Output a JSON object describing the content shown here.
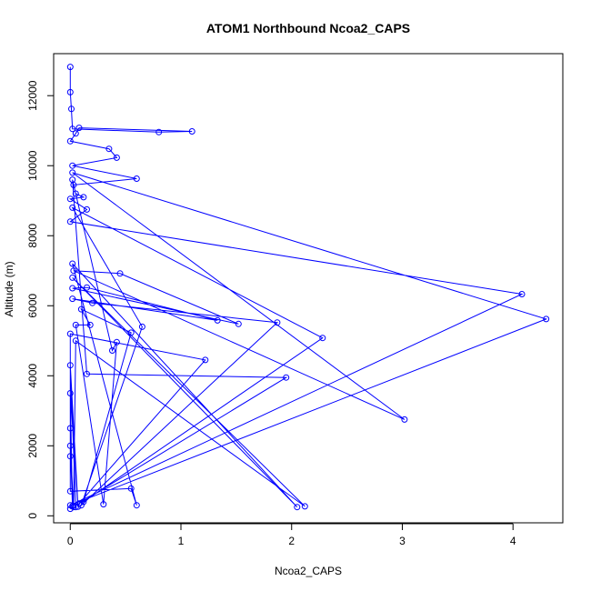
{
  "chart_data": {
    "type": "line",
    "title": "ATOM1 Northbound Ncoa2_CAPS",
    "xlabel": "Ncoa2_CAPS",
    "ylabel": "Altitude (m)",
    "xlim": [
      -0.15,
      4.45
    ],
    "ylim": [
      -200,
      13200
    ],
    "xticks": [
      0,
      1,
      2,
      3,
      4
    ],
    "yticks": [
      0,
      2000,
      4000,
      6000,
      8000,
      10000,
      12000
    ],
    "grid": false,
    "legend": "none",
    "color": "#0000ff",
    "points": [
      {
        "x": 0.0,
        "y": 12820
      },
      {
        "x": 0.0,
        "y": 12100
      },
      {
        "x": 0.01,
        "y": 11620
      },
      {
        "x": 0.02,
        "y": 11050
      },
      {
        "x": 0.8,
        "y": 10960
      },
      {
        "x": 1.1,
        "y": 10980
      },
      {
        "x": 0.08,
        "y": 11080
      },
      {
        "x": 0.05,
        "y": 10920
      },
      {
        "x": 0.0,
        "y": 10700
      },
      {
        "x": 0.35,
        "y": 10480
      },
      {
        "x": 0.42,
        "y": 10230
      },
      {
        "x": 0.02,
        "y": 10000
      },
      {
        "x": 0.6,
        "y": 9630
      },
      {
        "x": 0.03,
        "y": 9450
      },
      {
        "x": 0.05,
        "y": 9200
      },
      {
        "x": 0.12,
        "y": 9100
      },
      {
        "x": 0.0,
        "y": 9050
      },
      {
        "x": 0.15,
        "y": 8750
      },
      {
        "x": 0.0,
        "y": 8400
      },
      {
        "x": 4.08,
        "y": 6330
      },
      {
        "x": 0.0,
        "y": 300
      },
      {
        "x": 4.3,
        "y": 5620
      },
      {
        "x": 0.02,
        "y": 9800
      },
      {
        "x": 3.02,
        "y": 2750
      },
      {
        "x": 0.03,
        "y": 7000
      },
      {
        "x": 0.45,
        "y": 6920
      },
      {
        "x": 1.52,
        "y": 5480
      },
      {
        "x": 0.02,
        "y": 6500
      },
      {
        "x": 0.15,
        "y": 6520
      },
      {
        "x": 1.33,
        "y": 5580
      },
      {
        "x": 0.02,
        "y": 6200
      },
      {
        "x": 0.2,
        "y": 6080
      },
      {
        "x": 1.87,
        "y": 5520
      },
      {
        "x": 0.1,
        "y": 300
      },
      {
        "x": 0.65,
        "y": 5400
      },
      {
        "x": 0.02,
        "y": 8800
      },
      {
        "x": 2.28,
        "y": 5080
      },
      {
        "x": 0.12,
        "y": 400
      },
      {
        "x": 0.55,
        "y": 5230
      },
      {
        "x": 0.1,
        "y": 5900
      },
      {
        "x": 0.18,
        "y": 5450
      },
      {
        "x": 0.05,
        "y": 5450
      },
      {
        "x": 0.3,
        "y": 330
      },
      {
        "x": 0.42,
        "y": 4960
      },
      {
        "x": 0.38,
        "y": 4720
      },
      {
        "x": 0.02,
        "y": 9600
      },
      {
        "x": 0.15,
        "y": 4050
      },
      {
        "x": 1.95,
        "y": 3950
      },
      {
        "x": 0.08,
        "y": 350
      },
      {
        "x": 1.22,
        "y": 4450
      },
      {
        "x": 0.0,
        "y": 5200
      },
      {
        "x": 0.0,
        "y": 2500
      },
      {
        "x": 0.0,
        "y": 1700
      },
      {
        "x": 0.0,
        "y": 700
      },
      {
        "x": 0.55,
        "y": 780
      },
      {
        "x": 0.6,
        "y": 300
      },
      {
        "x": 0.02,
        "y": 7200
      },
      {
        "x": 2.05,
        "y": 250
      },
      {
        "x": 0.02,
        "y": 6800
      },
      {
        "x": 2.12,
        "y": 270
      },
      {
        "x": 0.05,
        "y": 5000
      },
      {
        "x": 0.03,
        "y": 250
      },
      {
        "x": 0.0,
        "y": 2000
      },
      {
        "x": 0.02,
        "y": 280
      },
      {
        "x": 0.0,
        "y": 3500
      },
      {
        "x": 0.07,
        "y": 260
      },
      {
        "x": 0.0,
        "y": 4300
      },
      {
        "x": 0.05,
        "y": 250
      },
      {
        "x": 0.0,
        "y": 200
      }
    ]
  }
}
